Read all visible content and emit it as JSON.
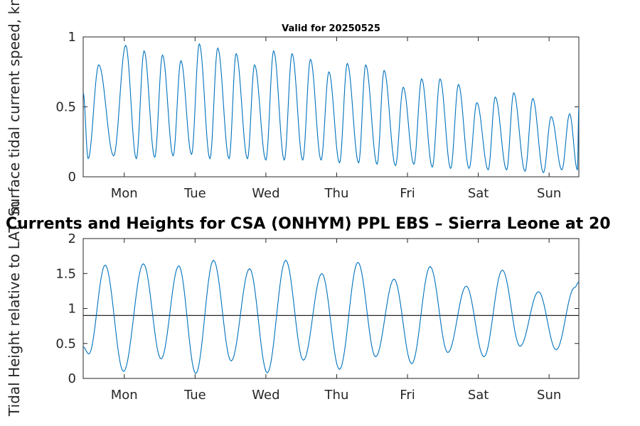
{
  "colors": {
    "series": "#0072BD",
    "reference_line": "#262626",
    "axis": "#262626"
  },
  "main_title": "Currents and Heights for CSA (ONHYM) PPL EBS  – Sierra Leone at 20",
  "chart_data": [
    {
      "type": "line",
      "title": "Valid for 20250525",
      "xlabel": "",
      "ylabel": "Surface tidal current speed, kn",
      "xlim": [
        0.0,
        7.0
      ],
      "ylim": [
        0,
        1
      ],
      "yticks": [
        0,
        0.5,
        1
      ],
      "yticklabels": [
        "0",
        "0.5",
        "1"
      ],
      "xticks": [
        0.58,
        1.58,
        2.58,
        3.58,
        4.58,
        5.58,
        6.58
      ],
      "xticklabels": [
        "Mon",
        "Tue",
        "Wed",
        "Thu",
        "Fri",
        "Sat",
        "Sun"
      ],
      "grid": false,
      "x_unit": "days since start of displayed period",
      "series": [
        {
          "name": "",
          "x": [
            0.0,
            0.07,
            0.22,
            0.43,
            0.6,
            0.75,
            0.86,
            1.01,
            1.12,
            1.27,
            1.38,
            1.53,
            1.64,
            1.79,
            1.9,
            2.06,
            2.16,
            2.32,
            2.42,
            2.58,
            2.69,
            2.84,
            2.95,
            3.1,
            3.21,
            3.36,
            3.47,
            3.62,
            3.73,
            3.89,
            3.99,
            4.15,
            4.25,
            4.41,
            4.52,
            4.67,
            4.78,
            4.93,
            5.04,
            5.19,
            5.3,
            5.45,
            5.56,
            5.72,
            5.82,
            5.98,
            6.08,
            6.24,
            6.35,
            6.5,
            6.61,
            6.76,
            6.87,
            6.98,
            7.0
          ],
          "y": [
            0.6,
            0.13,
            0.8,
            0.15,
            0.94,
            0.13,
            0.9,
            0.14,
            0.87,
            0.15,
            0.83,
            0.16,
            0.95,
            0.13,
            0.92,
            0.13,
            0.88,
            0.13,
            0.8,
            0.12,
            0.9,
            0.12,
            0.88,
            0.12,
            0.84,
            0.12,
            0.75,
            0.1,
            0.81,
            0.1,
            0.8,
            0.09,
            0.76,
            0.08,
            0.64,
            0.09,
            0.7,
            0.07,
            0.7,
            0.06,
            0.66,
            0.06,
            0.53,
            0.05,
            0.57,
            0.05,
            0.6,
            0.04,
            0.56,
            0.03,
            0.43,
            0.05,
            0.45,
            0.05,
            0.5
          ]
        }
      ]
    },
    {
      "type": "line",
      "title": "",
      "xlabel": "",
      "ylabel": "Tidal Height relative to LAT, m",
      "xlim": [
        0.0,
        7.0
      ],
      "ylim": [
        0,
        2
      ],
      "yticks": [
        0,
        0.5,
        1,
        1.5,
        2
      ],
      "yticklabels": [
        "0",
        "0.5",
        "1",
        "1.5",
        "2"
      ],
      "xticks": [
        0.58,
        1.58,
        2.58,
        3.58,
        4.58,
        5.58,
        6.58
      ],
      "xticklabels": [
        "Mon",
        "Tue",
        "Wed",
        "Thu",
        "Fri",
        "Sat",
        "Sun"
      ],
      "grid": false,
      "reference_line_y": 0.9,
      "x_unit": "days since start of displayed period",
      "series": [
        {
          "name": "",
          "x": [
            0.0,
            0.08,
            0.31,
            0.57,
            0.85,
            1.1,
            1.35,
            1.59,
            1.84,
            2.09,
            2.35,
            2.6,
            2.86,
            3.11,
            3.37,
            3.62,
            3.88,
            4.13,
            4.39,
            4.64,
            4.9,
            5.15,
            5.41,
            5.66,
            5.92,
            6.17,
            6.43,
            6.68,
            6.94,
            7.0
          ],
          "y": [
            0.45,
            0.35,
            1.62,
            0.1,
            1.64,
            0.28,
            1.61,
            0.07,
            1.69,
            0.25,
            1.57,
            0.08,
            1.69,
            0.26,
            1.5,
            0.13,
            1.66,
            0.31,
            1.42,
            0.21,
            1.6,
            0.37,
            1.32,
            0.31,
            1.55,
            0.46,
            1.24,
            0.41,
            1.3,
            1.38
          ]
        }
      ]
    }
  ]
}
